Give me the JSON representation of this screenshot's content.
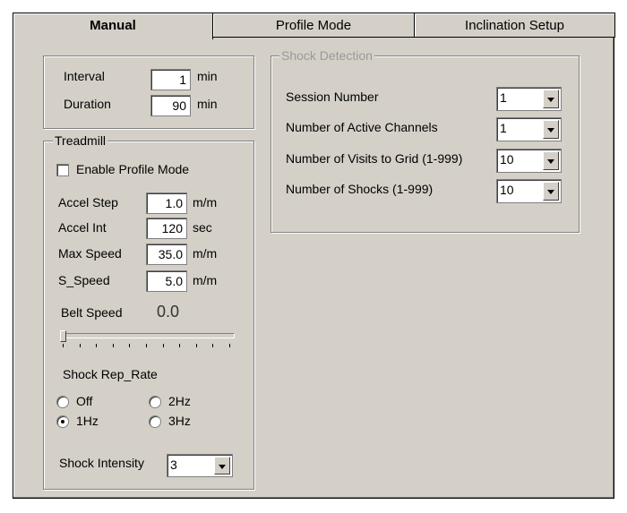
{
  "tabs": [
    {
      "label": "Manual",
      "selected": true
    },
    {
      "label": "Profile Mode",
      "selected": false
    },
    {
      "label": "Inclination Setup",
      "selected": false
    }
  ],
  "timing": {
    "interval_label": "Interval",
    "interval_value": "1",
    "interval_unit": "min",
    "duration_label": "Duration",
    "duration_value": "90",
    "duration_unit": "min"
  },
  "treadmill": {
    "title": "Treadmill",
    "enable_profile_label": "Enable Profile Mode",
    "enable_profile_checked": false,
    "accel_step_label": "Accel Step",
    "accel_step_value": "1.0",
    "accel_step_unit": "m/m",
    "accel_int_label": "Accel Int",
    "accel_int_value": "120",
    "accel_int_unit": "sec",
    "max_speed_label": "Max Speed",
    "max_speed_value": "35.0",
    "max_speed_unit": "m/m",
    "s_speed_label": "S_Speed",
    "s_speed_value": "5.0",
    "s_speed_unit": "m/m",
    "belt_speed_label": "Belt Speed",
    "belt_speed_value": "0.0",
    "belt_slider_fraction": 0,
    "rep_rate_label": "Shock Rep_Rate",
    "rep_rates": [
      "Off",
      "1Hz",
      "2Hz",
      "3Hz"
    ],
    "rep_rate_selected": "1Hz",
    "intensity_label": "Shock Intensity",
    "intensity_value": "3"
  },
  "shock_detection": {
    "title": "Shock Detection",
    "rows": [
      {
        "label": "Session Number",
        "value": "1"
      },
      {
        "label": "Number of Active Channels",
        "value": "1"
      },
      {
        "label": "Number of Visits to Grid (1-999)",
        "value": "10"
      },
      {
        "label": "Number of Shocks (1-999)",
        "value": "10"
      }
    ]
  }
}
